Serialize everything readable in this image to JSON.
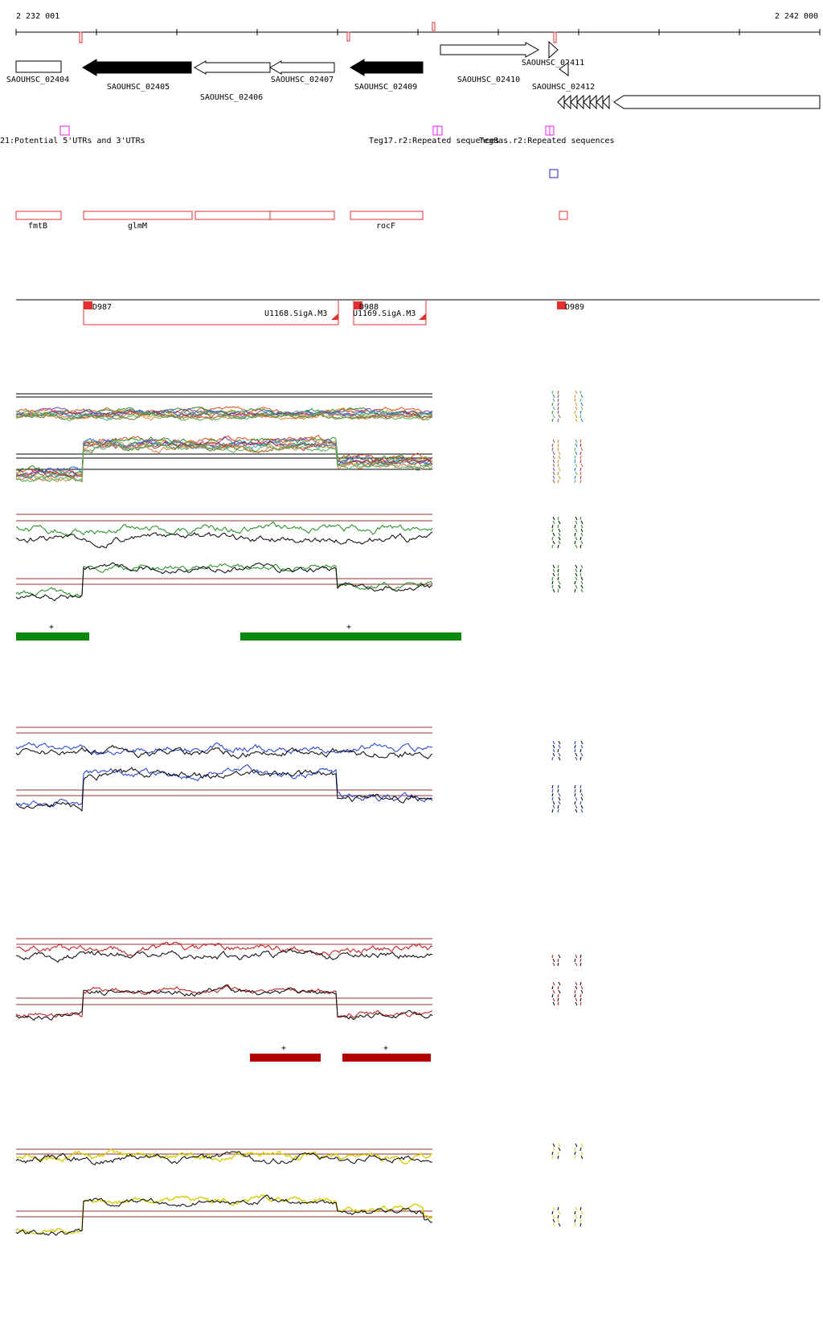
{
  "ruler": {
    "start_label": "2 232 001",
    "end_label": "2 242 000",
    "start": 2232001,
    "end": 2242000
  },
  "genes": [
    {
      "label": "SAOUHSC_02404",
      "fill": "none",
      "dir": "right"
    },
    {
      "label": "SAOUHSC_02405",
      "fill": "black",
      "dir": "left"
    },
    {
      "label": "SAOUHSC_02406",
      "fill": "none",
      "dir": "left"
    },
    {
      "label": "SAOUHSC_02407",
      "fill": "none",
      "dir": "left"
    },
    {
      "label": "SAOUHSC_02409",
      "fill": "black",
      "dir": "left"
    },
    {
      "label": "SAOUHSC_02410",
      "fill": "none",
      "dir": "right"
    },
    {
      "label": "SAOUHSC_02411",
      "fill": "none",
      "dir": "right"
    },
    {
      "label": "SAOUHSC_02412",
      "fill": "none",
      "dir": "left"
    }
  ],
  "features": [
    {
      "label": "21:Potential 5'UTRs and 3'UTRs"
    },
    {
      "label": "Teg17.r2:Repeated sequences"
    },
    {
      "label": "Teg8as.r2:Repeated sequences"
    }
  ],
  "named_genes": [
    {
      "label": "fmtB"
    },
    {
      "label": "glmM"
    },
    {
      "label": "rocF"
    }
  ],
  "transcription_units": [
    {
      "label": "D987"
    },
    {
      "label": "D988"
    },
    {
      "label": "D989"
    },
    {
      "label": "U1168.SigA.M3"
    },
    {
      "label": "U1169.SigA.M3"
    }
  ],
  "segment_marks": {
    "green": [
      "+",
      "+"
    ],
    "red": [
      "+",
      "+"
    ]
  },
  "colors": {
    "gene_black": "#000000",
    "annotation_red": "#e03030",
    "feature_magenta": "#ee22ee",
    "probe_blue": "#2222cc",
    "green_track": "#1a8a1a",
    "blue_track": "#1a3acc",
    "red_track": "#c01010",
    "yellow_track": "#d8d010",
    "segment_green": "#0a8a0a",
    "segment_red": "#b00000",
    "threshold": "#9a3030"
  }
}
